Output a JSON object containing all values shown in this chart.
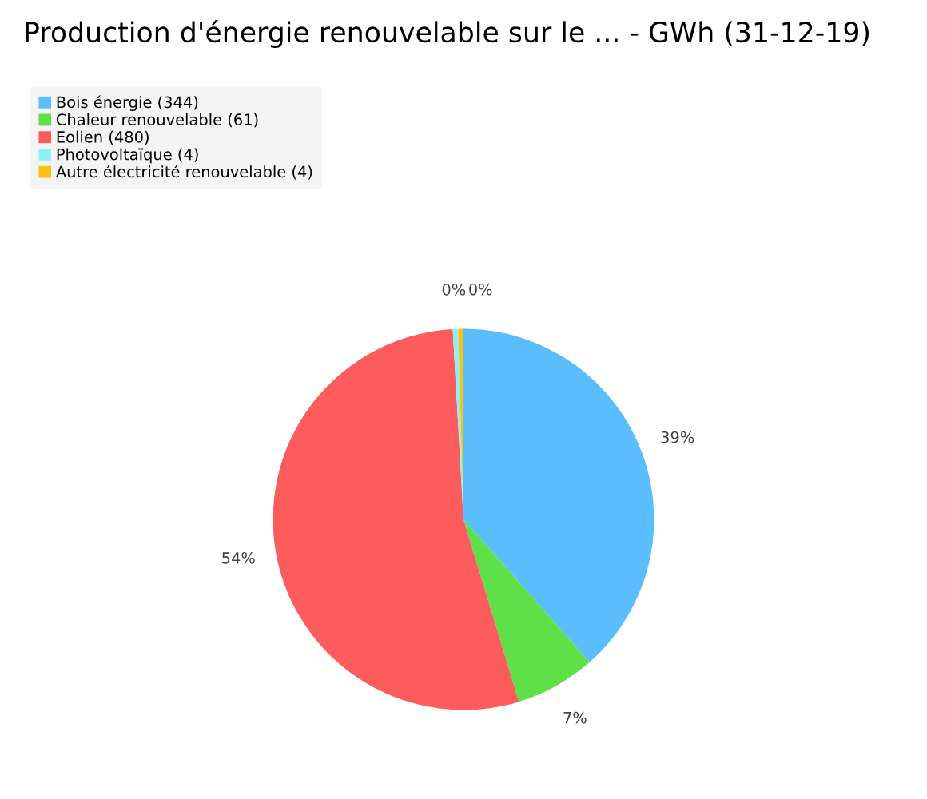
{
  "chart_data": {
    "type": "pie",
    "title": "Production d'énergie renouvelable sur le ... - GWh (31-12-19)",
    "categories": [
      "Bois énergie (344)",
      "Chaleur renouvelable (61)",
      "Eolien (480)",
      "Photovoltaïque (4)",
      "Autre électricité renouvelable (4)"
    ],
    "values": [
      38.5,
      6.8,
      53.8,
      0.45,
      0.45
    ],
    "colors": [
      "#5bbefc",
      "#5fe046",
      "#fd5c5c",
      "#8ff0f0",
      "#f9c114"
    ],
    "value_labels": [
      "39%",
      "7%",
      "54%",
      "0%",
      "0%"
    ],
    "legend": "top left"
  }
}
